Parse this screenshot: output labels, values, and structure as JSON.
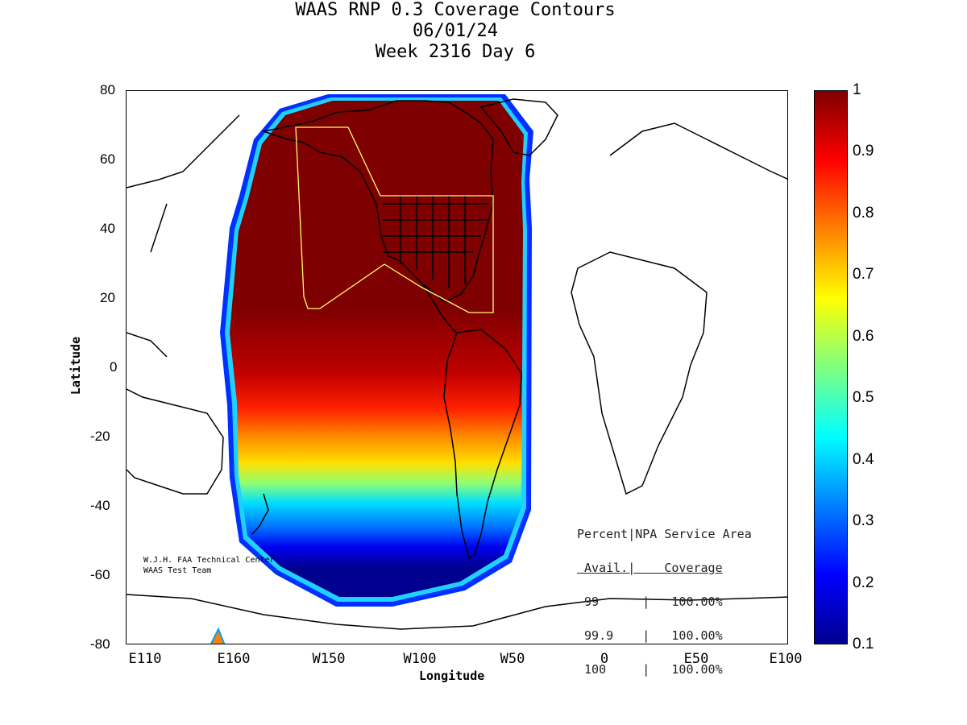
{
  "title": {
    "line1": "WAAS RNP 0.3 Coverage Contours",
    "line2": "06/01/24",
    "line3": "Week 2316 Day 6"
  },
  "axes": {
    "xlabel": "Longitude",
    "ylabel": "Latitude",
    "xticks": [
      "E110",
      "E160",
      "W150",
      "W100",
      "W50",
      "0",
      "E50",
      "E100"
    ],
    "yticks": [
      "80",
      "60",
      "40",
      "20",
      "0",
      "-20",
      "-40",
      "-60",
      "-80"
    ]
  },
  "colorbar": {
    "ticks": [
      "1",
      "0.9",
      "0.8",
      "0.7",
      "0.6",
      "0.5",
      "0.4",
      "0.3",
      "0.2",
      "0.1"
    ],
    "colors": [
      "#7f0000",
      "#ff0000",
      "#ff8000",
      "#ffff00",
      "#80ff80",
      "#00ffff",
      "#0080ff",
      "#0000ff",
      "#00008f"
    ]
  },
  "coverage_table": {
    "header_col1": "Percent",
    "header_col2": "NPA Service Area",
    "sub_col1": "Avail.",
    "sub_col2": "Coverage",
    "rows": [
      {
        "avail": "99",
        "coverage": "100.00%"
      },
      {
        "avail": "99.9",
        "coverage": "100.00%"
      },
      {
        "avail": "100",
        "coverage": "100.00%"
      }
    ]
  },
  "credit": {
    "line1": "W.J.H. FAA Technical Center",
    "line2": "WAAS Test Team"
  },
  "service_area_color": "#ffff66"
}
